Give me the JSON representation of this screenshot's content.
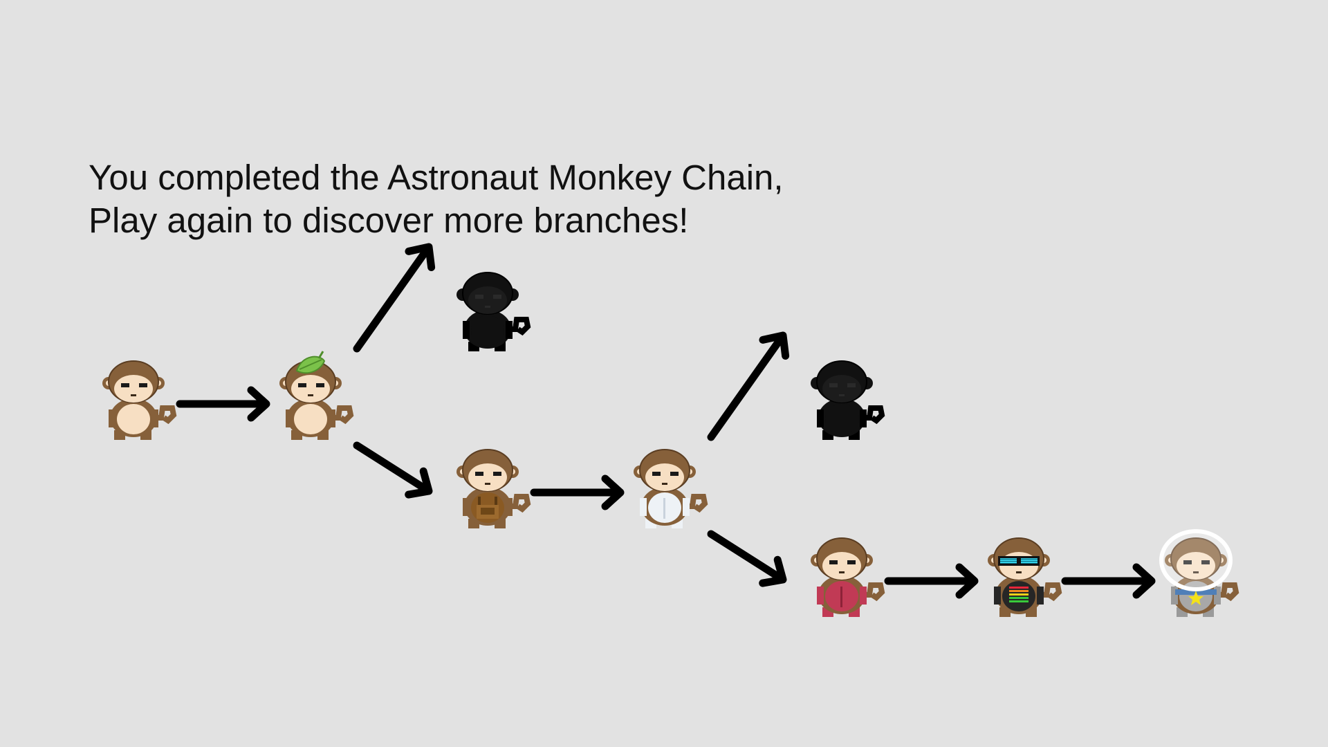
{
  "message": {
    "line1": "You completed the Astronaut Monkey Chain,",
    "line2": "Play again to discover more branches!"
  },
  "colors": {
    "background": "#e2e2e2",
    "text": "#111111",
    "arrow": "#000000",
    "fur": "#86603a",
    "belly": "#f7dfc3",
    "locked": "#111111"
  },
  "evolution_tree": {
    "nodes": [
      {
        "id": "monkey-basic",
        "variant": "basic",
        "discovered": true
      },
      {
        "id": "monkey-leaf",
        "variant": "leaf",
        "discovered": true
      },
      {
        "id": "monkey-locked-1",
        "variant": "locked",
        "discovered": false
      },
      {
        "id": "monkey-overalls",
        "variant": "overalls",
        "discovered": true
      },
      {
        "id": "monkey-white-suit",
        "variant": "white-suit",
        "discovered": true
      },
      {
        "id": "monkey-locked-2",
        "variant": "locked",
        "discovered": false
      },
      {
        "id": "monkey-red-suit",
        "variant": "red-suit",
        "discovered": true
      },
      {
        "id": "monkey-shades",
        "variant": "shades",
        "discovered": true
      },
      {
        "id": "monkey-astronaut",
        "variant": "astronaut",
        "discovered": true
      }
    ],
    "edges": [
      {
        "from": "monkey-basic",
        "to": "monkey-leaf"
      },
      {
        "from": "monkey-leaf",
        "to": "monkey-locked-1"
      },
      {
        "from": "monkey-leaf",
        "to": "monkey-overalls"
      },
      {
        "from": "monkey-overalls",
        "to": "monkey-white-suit"
      },
      {
        "from": "monkey-white-suit",
        "to": "monkey-locked-2"
      },
      {
        "from": "monkey-white-suit",
        "to": "monkey-red-suit"
      },
      {
        "from": "monkey-red-suit",
        "to": "monkey-shades"
      },
      {
        "from": "monkey-shades",
        "to": "monkey-astronaut"
      }
    ]
  }
}
